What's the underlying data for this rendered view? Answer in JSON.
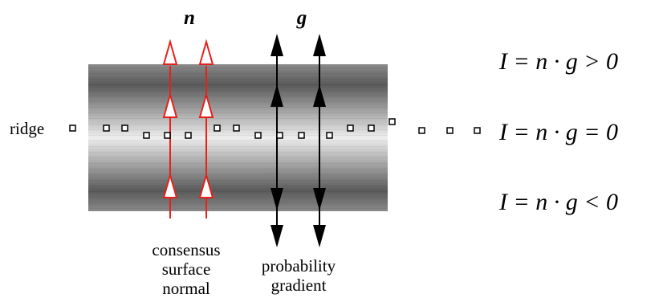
{
  "labels": {
    "n": "n",
    "g": "g",
    "ridge": "ridge",
    "consensus_line1": "consensus",
    "consensus_line2": "surface",
    "consensus_line3": "normal",
    "probability_line1": "probability",
    "probability_line2": "gradient"
  },
  "equations": {
    "top": "I = n · g > 0",
    "middle": "I = n · g = 0",
    "bottom": "I = n · g < 0"
  },
  "colors": {
    "normal_arrow": "#e8201c",
    "gradient_arrow": "#000000",
    "band_dark": "#555555",
    "band_light": "#ebebeb"
  },
  "icons": {
    "ridge_marker": "hollow-square",
    "normal_arrowhead": "hollow-triangle",
    "gradient_arrowhead": "filled-triangle"
  }
}
